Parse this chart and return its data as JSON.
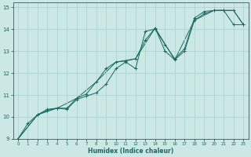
{
  "xlabel": "Humidex (Indice chaleur)",
  "bg_color": "#cce8e4",
  "grid_color": "#aad4d0",
  "line_color": "#1a6860",
  "xlim": [
    -0.5,
    23.5
  ],
  "ylim": [
    9,
    15.2
  ],
  "xticks": [
    0,
    1,
    2,
    3,
    4,
    5,
    6,
    7,
    8,
    9,
    10,
    11,
    12,
    13,
    14,
    15,
    16,
    17,
    18,
    19,
    20,
    21,
    22,
    23
  ],
  "yticks": [
    9,
    10,
    11,
    12,
    13,
    14,
    15
  ],
  "line1_x": [
    0,
    1,
    2,
    3,
    4,
    5,
    6,
    7,
    8,
    9,
    10,
    11,
    12,
    13,
    14,
    15,
    16,
    17,
    18,
    19,
    20,
    21,
    22,
    23
  ],
  "line1_y": [
    9.0,
    9.7,
    10.1,
    10.35,
    10.4,
    10.35,
    10.8,
    10.95,
    11.1,
    11.5,
    12.2,
    12.5,
    12.2,
    13.9,
    14.0,
    13.3,
    12.65,
    13.1,
    14.5,
    14.8,
    14.85,
    14.85,
    14.2,
    14.2
  ],
  "line2_x": [
    0,
    2,
    3,
    4,
    5,
    6,
    7,
    8,
    9,
    10,
    11,
    12,
    13,
    14,
    15,
    16,
    17,
    18,
    19,
    20,
    21,
    22,
    23
  ],
  "line2_y": [
    9.0,
    10.1,
    10.3,
    10.4,
    10.4,
    10.85,
    11.05,
    11.6,
    12.2,
    12.5,
    12.55,
    12.65,
    13.5,
    14.05,
    13.0,
    12.6,
    13.0,
    14.4,
    14.7,
    14.85,
    14.85,
    14.85,
    14.2
  ],
  "line3_x": [
    0,
    2,
    4,
    6,
    8,
    10,
    12,
    14,
    16,
    18,
    20,
    22,
    23
  ],
  "line3_y": [
    9.0,
    10.1,
    10.4,
    10.85,
    11.6,
    12.5,
    12.65,
    14.05,
    12.6,
    14.4,
    14.85,
    14.85,
    14.2
  ]
}
